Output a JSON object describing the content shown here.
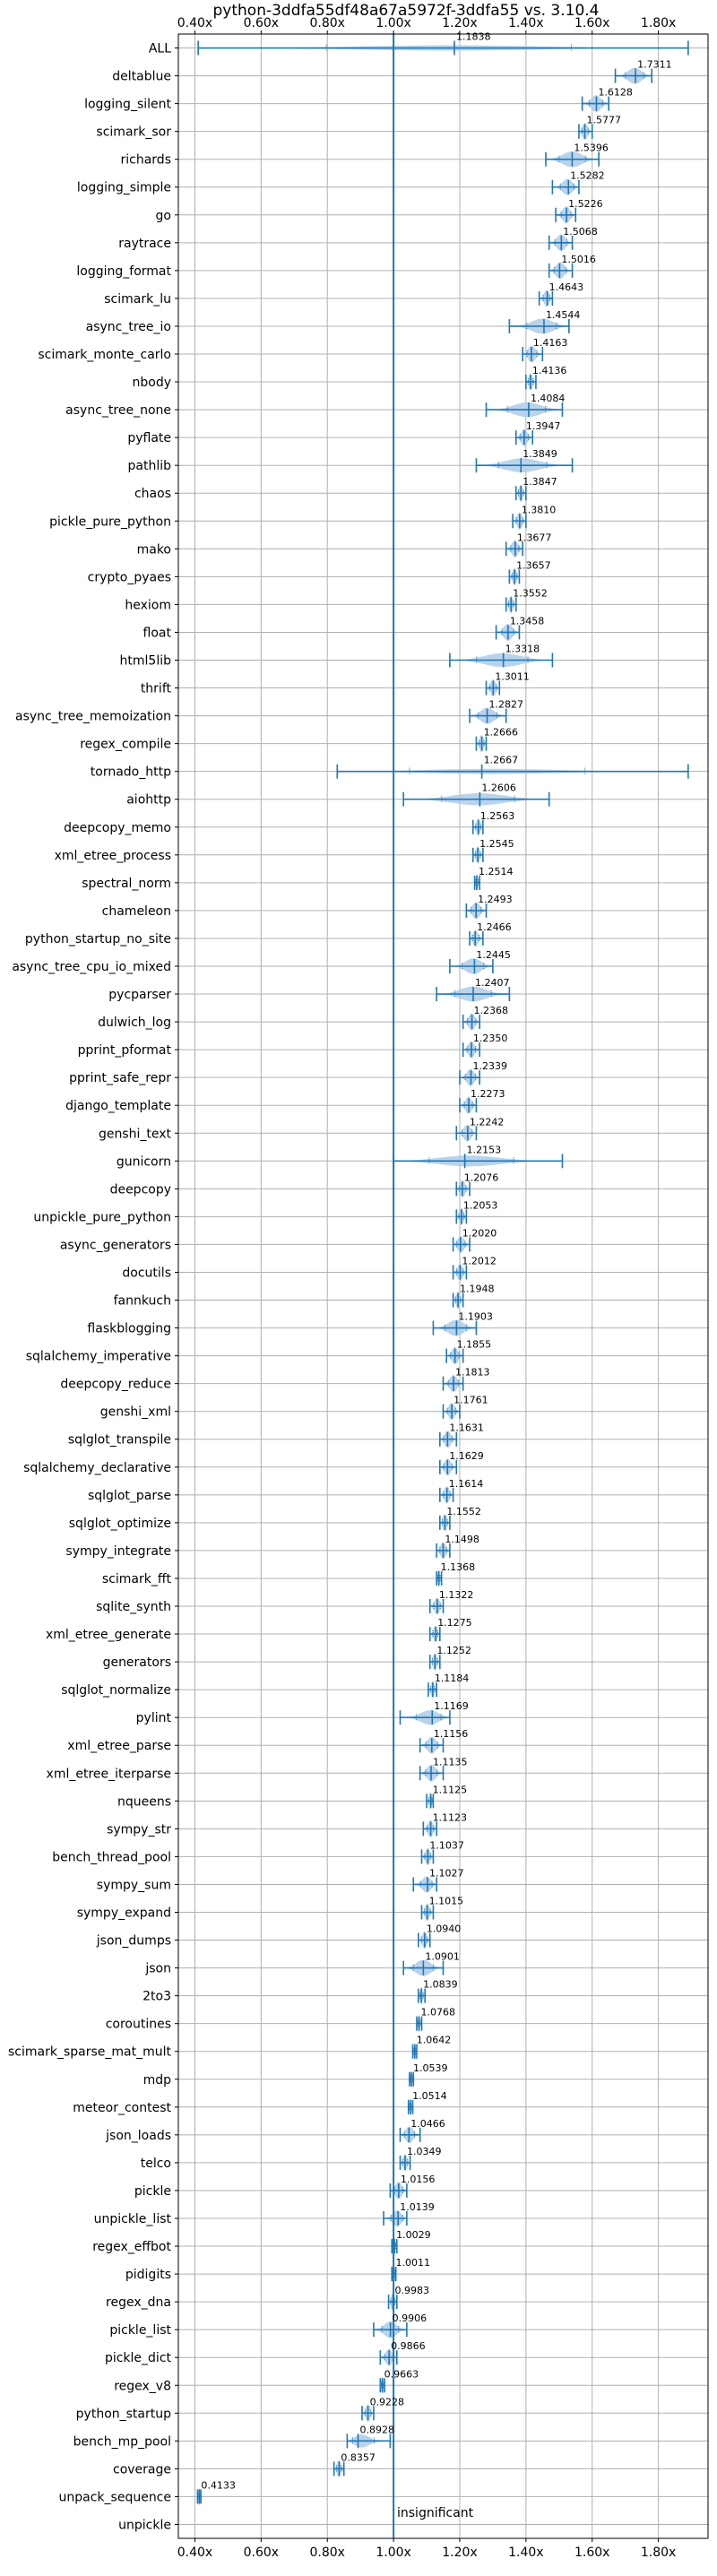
{
  "chart_data": {
    "type": "violin",
    "title": "python-3ddfa55df48a67a5972f-3ddfa55 vs. 3.10.4",
    "xlabel": "",
    "ylabel": "",
    "xlim": [
      0.35,
      1.95
    ],
    "x_ticks": [
      0.4,
      0.6,
      0.8,
      1.0,
      1.2,
      1.4,
      1.6,
      1.8
    ],
    "x_tick_labels": [
      "0.40x",
      "0.60x",
      "0.80x",
      "1.00x",
      "1.20x",
      "1.40x",
      "1.60x",
      "1.80x"
    ],
    "reference_line": 1.0,
    "grid": true,
    "color": "#1f77b4",
    "violin_fill": "#aecbe8",
    "annotation": "insignificant",
    "benchmarks": [
      {
        "name": "ALL",
        "value": 1.1838,
        "label": "1.1838",
        "lo": 0.41,
        "hi": 1.89
      },
      {
        "name": "deltablue",
        "value": 1.7311,
        "label": "1.7311",
        "lo": 1.67,
        "hi": 1.78
      },
      {
        "name": "logging_silent",
        "value": 1.6128,
        "label": "1.6128",
        "lo": 1.57,
        "hi": 1.65
      },
      {
        "name": "scimark_sor",
        "value": 1.5777,
        "label": "1.5777",
        "lo": 1.56,
        "hi": 1.6
      },
      {
        "name": "richards",
        "value": 1.5396,
        "label": "1.5396",
        "lo": 1.46,
        "hi": 1.62
      },
      {
        "name": "logging_simple",
        "value": 1.5282,
        "label": "1.5282",
        "lo": 1.48,
        "hi": 1.56
      },
      {
        "name": "go",
        "value": 1.5226,
        "label": "1.5226",
        "lo": 1.49,
        "hi": 1.55
      },
      {
        "name": "raytrace",
        "value": 1.5068,
        "label": "1.5068",
        "lo": 1.47,
        "hi": 1.54
      },
      {
        "name": "logging_format",
        "value": 1.5016,
        "label": "1.5016",
        "lo": 1.47,
        "hi": 1.54
      },
      {
        "name": "scimark_lu",
        "value": 1.4643,
        "label": "1.4643",
        "lo": 1.44,
        "hi": 1.48
      },
      {
        "name": "async_tree_io",
        "value": 1.4544,
        "label": "1.4544",
        "lo": 1.35,
        "hi": 1.53
      },
      {
        "name": "scimark_monte_carlo",
        "value": 1.4163,
        "label": "1.4163",
        "lo": 1.39,
        "hi": 1.45
      },
      {
        "name": "nbody",
        "value": 1.4136,
        "label": "1.4136",
        "lo": 1.4,
        "hi": 1.43
      },
      {
        "name": "async_tree_none",
        "value": 1.4084,
        "label": "1.4084",
        "lo": 1.28,
        "hi": 1.51
      },
      {
        "name": "pyflate",
        "value": 1.3947,
        "label": "1.3947",
        "lo": 1.37,
        "hi": 1.42
      },
      {
        "name": "pathlib",
        "value": 1.3849,
        "label": "1.3849",
        "lo": 1.25,
        "hi": 1.54
      },
      {
        "name": "chaos",
        "value": 1.3847,
        "label": "1.3847",
        "lo": 1.37,
        "hi": 1.4
      },
      {
        "name": "pickle_pure_python",
        "value": 1.381,
        "label": "1.3810",
        "lo": 1.36,
        "hi": 1.4
      },
      {
        "name": "mako",
        "value": 1.3677,
        "label": "1.3677",
        "lo": 1.34,
        "hi": 1.39
      },
      {
        "name": "crypto_pyaes",
        "value": 1.3657,
        "label": "1.3657",
        "lo": 1.35,
        "hi": 1.38
      },
      {
        "name": "hexiom",
        "value": 1.3552,
        "label": "1.3552",
        "lo": 1.34,
        "hi": 1.37
      },
      {
        "name": "float",
        "value": 1.3458,
        "label": "1.3458",
        "lo": 1.31,
        "hi": 1.38
      },
      {
        "name": "html5lib",
        "value": 1.3318,
        "label": "1.3318",
        "lo": 1.17,
        "hi": 1.48
      },
      {
        "name": "thrift",
        "value": 1.3011,
        "label": "1.3011",
        "lo": 1.28,
        "hi": 1.32
      },
      {
        "name": "async_tree_memoization",
        "value": 1.2827,
        "label": "1.2827",
        "lo": 1.23,
        "hi": 1.34
      },
      {
        "name": "regex_compile",
        "value": 1.2666,
        "label": "1.2666",
        "lo": 1.25,
        "hi": 1.28
      },
      {
        "name": "tornado_http",
        "value": 1.2667,
        "label": "1.2667",
        "lo": 0.83,
        "hi": 1.89
      },
      {
        "name": "aiohttp",
        "value": 1.2606,
        "label": "1.2606",
        "lo": 1.03,
        "hi": 1.47
      },
      {
        "name": "deepcopy_memo",
        "value": 1.2563,
        "label": "1.2563",
        "lo": 1.24,
        "hi": 1.27
      },
      {
        "name": "xml_etree_process",
        "value": 1.2545,
        "label": "1.2545",
        "lo": 1.24,
        "hi": 1.27
      },
      {
        "name": "spectral_norm",
        "value": 1.2514,
        "label": "1.2514",
        "lo": 1.245,
        "hi": 1.26
      },
      {
        "name": "chameleon",
        "value": 1.2493,
        "label": "1.2493",
        "lo": 1.22,
        "hi": 1.28
      },
      {
        "name": "python_startup_no_site",
        "value": 1.2466,
        "label": "1.2466",
        "lo": 1.23,
        "hi": 1.27
      },
      {
        "name": "async_tree_cpu_io_mixed",
        "value": 1.2445,
        "label": "1.2445",
        "lo": 1.17,
        "hi": 1.3
      },
      {
        "name": "pycparser",
        "value": 1.2407,
        "label": "1.2407",
        "lo": 1.13,
        "hi": 1.35
      },
      {
        "name": "dulwich_log",
        "value": 1.2368,
        "label": "1.2368",
        "lo": 1.21,
        "hi": 1.26
      },
      {
        "name": "pprint_pformat",
        "value": 1.235,
        "label": "1.2350",
        "lo": 1.21,
        "hi": 1.26
      },
      {
        "name": "pprint_safe_repr",
        "value": 1.2339,
        "label": "1.2339",
        "lo": 1.2,
        "hi": 1.26
      },
      {
        "name": "django_template",
        "value": 1.2273,
        "label": "1.2273",
        "lo": 1.2,
        "hi": 1.25
      },
      {
        "name": "genshi_text",
        "value": 1.2242,
        "label": "1.2242",
        "lo": 1.19,
        "hi": 1.25
      },
      {
        "name": "gunicorn",
        "value": 1.2153,
        "label": "1.2153",
        "lo": 1.0,
        "hi": 1.51
      },
      {
        "name": "deepcopy",
        "value": 1.2076,
        "label": "1.2076",
        "lo": 1.19,
        "hi": 1.23
      },
      {
        "name": "unpickle_pure_python",
        "value": 1.2053,
        "label": "1.2053",
        "lo": 1.19,
        "hi": 1.22
      },
      {
        "name": "async_generators",
        "value": 1.202,
        "label": "1.2020",
        "lo": 1.18,
        "hi": 1.23
      },
      {
        "name": "docutils",
        "value": 1.2012,
        "label": "1.2012",
        "lo": 1.18,
        "hi": 1.22
      },
      {
        "name": "fannkuch",
        "value": 1.1948,
        "label": "1.1948",
        "lo": 1.18,
        "hi": 1.21
      },
      {
        "name": "flaskblogging",
        "value": 1.1903,
        "label": "1.1903",
        "lo": 1.12,
        "hi": 1.25
      },
      {
        "name": "sqlalchemy_imperative",
        "value": 1.1855,
        "label": "1.1855",
        "lo": 1.16,
        "hi": 1.21
      },
      {
        "name": "deepcopy_reduce",
        "value": 1.1813,
        "label": "1.1813",
        "lo": 1.15,
        "hi": 1.21
      },
      {
        "name": "genshi_xml",
        "value": 1.1761,
        "label": "1.1761",
        "lo": 1.15,
        "hi": 1.2
      },
      {
        "name": "sqlglot_transpile",
        "value": 1.1631,
        "label": "1.1631",
        "lo": 1.14,
        "hi": 1.19
      },
      {
        "name": "sqlalchemy_declarative",
        "value": 1.1629,
        "label": "1.1629",
        "lo": 1.14,
        "hi": 1.19
      },
      {
        "name": "sqlglot_parse",
        "value": 1.1614,
        "label": "1.1614",
        "lo": 1.14,
        "hi": 1.18
      },
      {
        "name": "sqlglot_optimize",
        "value": 1.1552,
        "label": "1.1552",
        "lo": 1.14,
        "hi": 1.17
      },
      {
        "name": "sympy_integrate",
        "value": 1.1498,
        "label": "1.1498",
        "lo": 1.13,
        "hi": 1.17
      },
      {
        "name": "scimark_fft",
        "value": 1.1368,
        "label": "1.1368",
        "lo": 1.13,
        "hi": 1.145
      },
      {
        "name": "sqlite_synth",
        "value": 1.1322,
        "label": "1.1322",
        "lo": 1.11,
        "hi": 1.15
      },
      {
        "name": "xml_etree_generate",
        "value": 1.1275,
        "label": "1.1275",
        "lo": 1.11,
        "hi": 1.14
      },
      {
        "name": "generators",
        "value": 1.1252,
        "label": "1.1252",
        "lo": 1.11,
        "hi": 1.14
      },
      {
        "name": "sqlglot_normalize",
        "value": 1.1184,
        "label": "1.1184",
        "lo": 1.105,
        "hi": 1.13
      },
      {
        "name": "pylint",
        "value": 1.1169,
        "label": "1.1169",
        "lo": 1.02,
        "hi": 1.17
      },
      {
        "name": "xml_etree_parse",
        "value": 1.1156,
        "label": "1.1156",
        "lo": 1.08,
        "hi": 1.15
      },
      {
        "name": "xml_etree_iterparse",
        "value": 1.1135,
        "label": "1.1135",
        "lo": 1.08,
        "hi": 1.15
      },
      {
        "name": "nqueens",
        "value": 1.1125,
        "label": "1.1125",
        "lo": 1.1,
        "hi": 1.12
      },
      {
        "name": "sympy_str",
        "value": 1.1123,
        "label": "1.1123",
        "lo": 1.09,
        "hi": 1.13
      },
      {
        "name": "bench_thread_pool",
        "value": 1.1037,
        "label": "1.1037",
        "lo": 1.085,
        "hi": 1.12
      },
      {
        "name": "sympy_sum",
        "value": 1.1027,
        "label": "1.1027",
        "lo": 1.06,
        "hi": 1.13
      },
      {
        "name": "sympy_expand",
        "value": 1.1015,
        "label": "1.1015",
        "lo": 1.085,
        "hi": 1.12
      },
      {
        "name": "json_dumps",
        "value": 1.094,
        "label": "1.0940",
        "lo": 1.075,
        "hi": 1.11
      },
      {
        "name": "json",
        "value": 1.0901,
        "label": "1.0901",
        "lo": 1.03,
        "hi": 1.15
      },
      {
        "name": "2to3",
        "value": 1.0839,
        "label": "1.0839",
        "lo": 1.075,
        "hi": 1.095
      },
      {
        "name": "coroutines",
        "value": 1.0768,
        "label": "1.0768",
        "lo": 1.07,
        "hi": 1.085
      },
      {
        "name": "scimark_sparse_mat_mult",
        "value": 1.0642,
        "label": "1.0642",
        "lo": 1.058,
        "hi": 1.07
      },
      {
        "name": "mdp",
        "value": 1.0539,
        "label": "1.0539",
        "lo": 1.048,
        "hi": 1.06
      },
      {
        "name": "meteor_contest",
        "value": 1.0514,
        "label": "1.0514",
        "lo": 1.045,
        "hi": 1.058
      },
      {
        "name": "json_loads",
        "value": 1.0466,
        "label": "1.0466",
        "lo": 1.02,
        "hi": 1.08
      },
      {
        "name": "telco",
        "value": 1.0349,
        "label": "1.0349",
        "lo": 1.02,
        "hi": 1.05
      },
      {
        "name": "pickle",
        "value": 1.0156,
        "label": "1.0156",
        "lo": 0.99,
        "hi": 1.04
      },
      {
        "name": "unpickle_list",
        "value": 1.0139,
        "label": "1.0139",
        "lo": 0.97,
        "hi": 1.04
      },
      {
        "name": "regex_effbot",
        "value": 1.0029,
        "label": "1.0029",
        "lo": 0.995,
        "hi": 1.01
      },
      {
        "name": "pidigits",
        "value": 1.0011,
        "label": "1.0011",
        "lo": 0.995,
        "hi": 1.007
      },
      {
        "name": "regex_dna",
        "value": 0.9983,
        "label": "0.9983",
        "lo": 0.985,
        "hi": 1.01
      },
      {
        "name": "pickle_list",
        "value": 0.9906,
        "label": "0.9906",
        "lo": 0.94,
        "hi": 1.04
      },
      {
        "name": "pickle_dict",
        "value": 0.9866,
        "label": "0.9866",
        "lo": 0.96,
        "hi": 1.01
      },
      {
        "name": "regex_v8",
        "value": 0.9663,
        "label": "0.9663",
        "lo": 0.96,
        "hi": 0.973
      },
      {
        "name": "python_startup",
        "value": 0.9228,
        "label": "0.9228",
        "lo": 0.905,
        "hi": 0.94
      },
      {
        "name": "bench_mp_pool",
        "value": 0.8928,
        "label": "0.8928",
        "lo": 0.86,
        "hi": 0.99
      },
      {
        "name": "coverage",
        "value": 0.8357,
        "label": "0.8357",
        "lo": 0.82,
        "hi": 0.85
      },
      {
        "name": "unpack_sequence",
        "value": 0.4133,
        "label": "0.4133",
        "lo": 0.408,
        "hi": 0.418
      },
      {
        "name": "unpickle",
        "value": null,
        "label": "",
        "lo": null,
        "hi": null
      }
    ]
  }
}
